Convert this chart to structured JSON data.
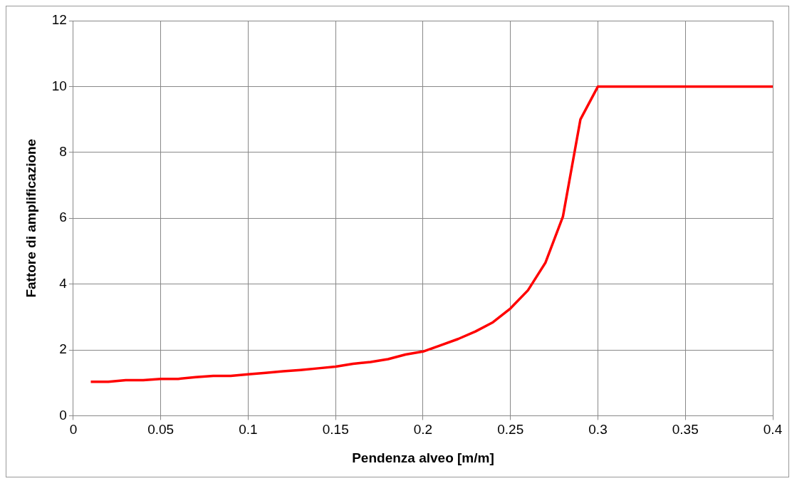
{
  "chart_data": {
    "type": "line",
    "xlabel": "Pendenza alveo [m/m]",
    "ylabel": "Fattore di amplificazione",
    "x": [
      0.01,
      0.02,
      0.03,
      0.04,
      0.05,
      0.06,
      0.07,
      0.08,
      0.09,
      0.1,
      0.11,
      0.12,
      0.13,
      0.14,
      0.15,
      0.16,
      0.17,
      0.18,
      0.19,
      0.2,
      0.21,
      0.22,
      0.23,
      0.24,
      0.25,
      0.26,
      0.27,
      0.28,
      0.29,
      0.3,
      0.31,
      0.32,
      0.33,
      0.34,
      0.35,
      0.36,
      0.37,
      0.38,
      0.39,
      0.4
    ],
    "series": [
      {
        "color": "#ff0000",
        "values": [
          1.03,
          1.03,
          1.08,
          1.08,
          1.12,
          1.12,
          1.17,
          1.21,
          1.21,
          1.26,
          1.3,
          1.35,
          1.39,
          1.44,
          1.49,
          1.58,
          1.63,
          1.72,
          1.86,
          1.95,
          2.14,
          2.33,
          2.56,
          2.84,
          3.26,
          3.81,
          4.65,
          6.05,
          9.0,
          10,
          10,
          10,
          10,
          10,
          10,
          10,
          10,
          10,
          10,
          10
        ]
      }
    ],
    "xlim": [
      0,
      0.4
    ],
    "xticks": [
      0,
      0.05,
      0.1,
      0.15,
      0.2,
      0.25,
      0.3,
      0.35,
      0.4
    ],
    "ylim": [
      0,
      12
    ],
    "yticks": [
      0,
      2,
      4,
      6,
      8,
      10,
      12
    ],
    "grid": true,
    "legend": false,
    "marker": "none",
    "line_style": "solid"
  }
}
